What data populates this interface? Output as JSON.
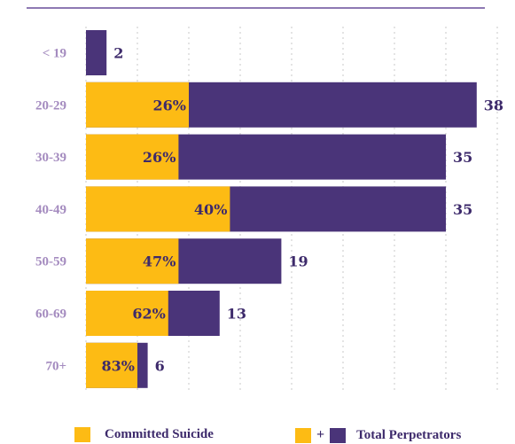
{
  "colors": {
    "suicide": "#fdbb14",
    "perpetrators": "#4a3479",
    "category_label": "#a48bbf",
    "value_text": "#3d2a6b",
    "grid": "#c8c8c8",
    "top_rule": "#8e79b3"
  },
  "legend": {
    "suicide_label": "Committed Suicide",
    "plus": "+",
    "total_label": "Total Perpetrators"
  },
  "chart_data": {
    "type": "bar",
    "orientation": "horizontal",
    "stacked_overlay": true,
    "categories": [
      "< 19",
      "20-29",
      "30-39",
      "40-49",
      "50-59",
      "60-69",
      "70+"
    ],
    "series": [
      {
        "name": "Total Perpetrators",
        "values": [
          2,
          38,
          35,
          35,
          19,
          13,
          6
        ]
      },
      {
        "name": "Committed Suicide",
        "values": [
          0,
          10,
          9,
          14,
          9,
          8,
          5
        ],
        "percent_labels": [
          "",
          "26%",
          "26%",
          "40%",
          "47%",
          "62%",
          "83%"
        ]
      }
    ],
    "title": "",
    "xlabel": "",
    "ylabel": "",
    "xlim": [
      0,
      40
    ],
    "grid": true,
    "legend_position": "bottom"
  }
}
